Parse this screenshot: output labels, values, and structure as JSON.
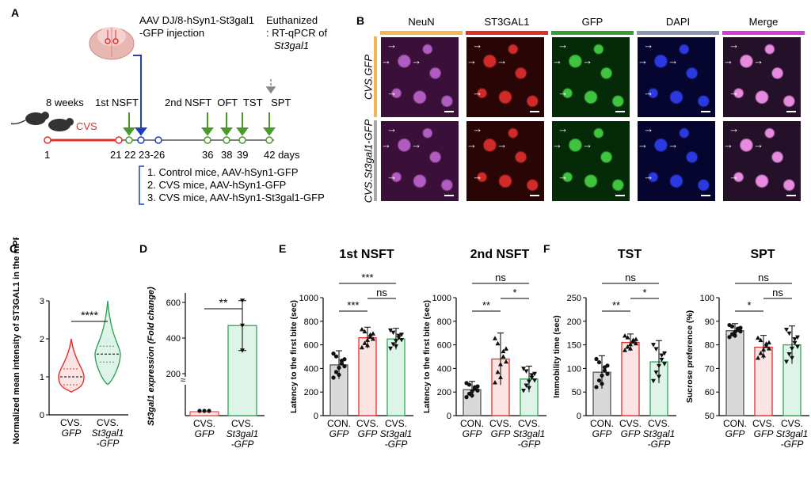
{
  "panels": {
    "A": "A",
    "B": "B",
    "C": "C",
    "D": "D",
    "E": "E",
    "F": "F"
  },
  "timeline": {
    "injection_line1": "AAV DJ/8-hSyn1-St3gal1",
    "injection_line2": "-GFP injection",
    "euth_line1": "Euthanized",
    "euth_line2": ": RT-qPCR of",
    "euth_line3": "St3gal1",
    "weeks": "8 weeks",
    "cvs": "CVS",
    "nsft1": "1st NSFT",
    "tests2": "2nd NSFT  OFT  TST   SPT",
    "days": [
      "1",
      "21",
      "22",
      "23-26",
      "36",
      "38",
      "39",
      "42 days"
    ],
    "groups": [
      "1. Control mice, AAV-hSyn1-GFP",
      "2. CVS mice, AAV-hSyn1-GFP",
      "3. CVS mice, AAV-hSyn1-St3gal1-GFP"
    ],
    "colors": {
      "cvs": "#e0302c",
      "arrow_green": "#4a9a2a",
      "arrow_blue": "#1f3fbf",
      "gray": "#888888"
    }
  },
  "micro": {
    "columns": [
      "NeuN",
      "ST3GAL1",
      "GFP",
      "DAPI",
      "Merge"
    ],
    "column_colors": [
      "#f2b75a",
      "#e0302c",
      "#3a9b3a",
      "#8a97b0",
      "#d23fd6"
    ],
    "rows": [
      "CVS.GFP",
      "CVS.St3gal1-GFP"
    ],
    "row_colors": [
      "#f2b75a",
      "#a8a8a8"
    ]
  },
  "chart_data": [
    {
      "panel": "C",
      "type": "violin",
      "ylabel": "Normalized mean intensity of ST3GAL1 in the mPFC",
      "ylim": [
        0,
        3
      ],
      "yticks": [
        "0",
        "1",
        "2",
        "3"
      ],
      "categories": [
        "CVS. GFP",
        "CVS. St3gal1 -GFP"
      ],
      "medians": [
        1.0,
        1.6
      ],
      "ranges": [
        [
          0.6,
          2.0
        ],
        [
          0.8,
          3.0
        ]
      ],
      "significance": [
        "****"
      ]
    },
    {
      "panel": "D",
      "type": "bar",
      "ylabel": "St3gal1 expression (Fold change)",
      "yticks": [
        "200",
        "400",
        "600"
      ],
      "categories": [
        "CVS. GFP",
        "CVS. St3gal1 -GFP"
      ],
      "values": [
        1,
        470
      ],
      "errors": [
        0.2,
        130
      ],
      "points": [
        [
          1,
          1,
          1
        ],
        [
          610,
          470,
          330
        ]
      ],
      "significance": [
        "**"
      ]
    },
    {
      "panel": "E",
      "type": "bar",
      "title": "1st NSFT",
      "ylabel": "Latency to the first bite (sec)",
      "ylim": [
        0,
        1000
      ],
      "yticks": [
        "0",
        "200",
        "400",
        "600",
        "800",
        "1000"
      ],
      "categories": [
        "CON. GFP",
        "CVS. GFP",
        "CVS. St3gal1 -GFP"
      ],
      "values": [
        430,
        660,
        650
      ],
      "errors": [
        120,
        90,
        90
      ],
      "significance": [
        "***",
        "ns",
        "***"
      ]
    },
    {
      "panel": "E2",
      "type": "bar",
      "title": "2nd NSFT",
      "ylabel": "Latency to the first bite (sec)",
      "ylim": [
        0,
        1000
      ],
      "yticks": [
        "0",
        "200",
        "400",
        "600",
        "800",
        "1000"
      ],
      "categories": [
        "CON. GFP",
        "CVS. GFP",
        "CVS. St3gal1 -GFP"
      ],
      "values": [
        220,
        480,
        310
      ],
      "errors": [
        70,
        220,
        110
      ],
      "significance": [
        "**",
        "*",
        "ns"
      ]
    },
    {
      "panel": "F",
      "type": "bar",
      "title": "TST",
      "ylabel": "Immobility time (sec)",
      "ylim": [
        0,
        250
      ],
      "yticks": [
        "0",
        "50",
        "100",
        "150",
        "200",
        "250"
      ],
      "categories": [
        "CON. GFP",
        "CVS. GFP",
        "CVS. St3gal1 -GFP"
      ],
      "values": [
        92,
        155,
        114
      ],
      "errors": [
        35,
        18,
        45
      ],
      "significance": [
        "**",
        "*",
        "ns"
      ]
    },
    {
      "panel": "F2",
      "type": "bar",
      "title": "SPT",
      "ylabel": "Sucrose preference (%)",
      "ylim": [
        50,
        100
      ],
      "yticks": [
        "50",
        "60",
        "70",
        "80",
        "90",
        "100"
      ],
      "categories": [
        "CON. GFP",
        "CVS. GFP",
        "CVS. St3gal1 -GFP"
      ],
      "values": [
        86,
        79,
        80
      ],
      "errors": [
        3,
        5,
        8
      ],
      "significance": [
        "*",
        "ns",
        "ns"
      ]
    }
  ]
}
